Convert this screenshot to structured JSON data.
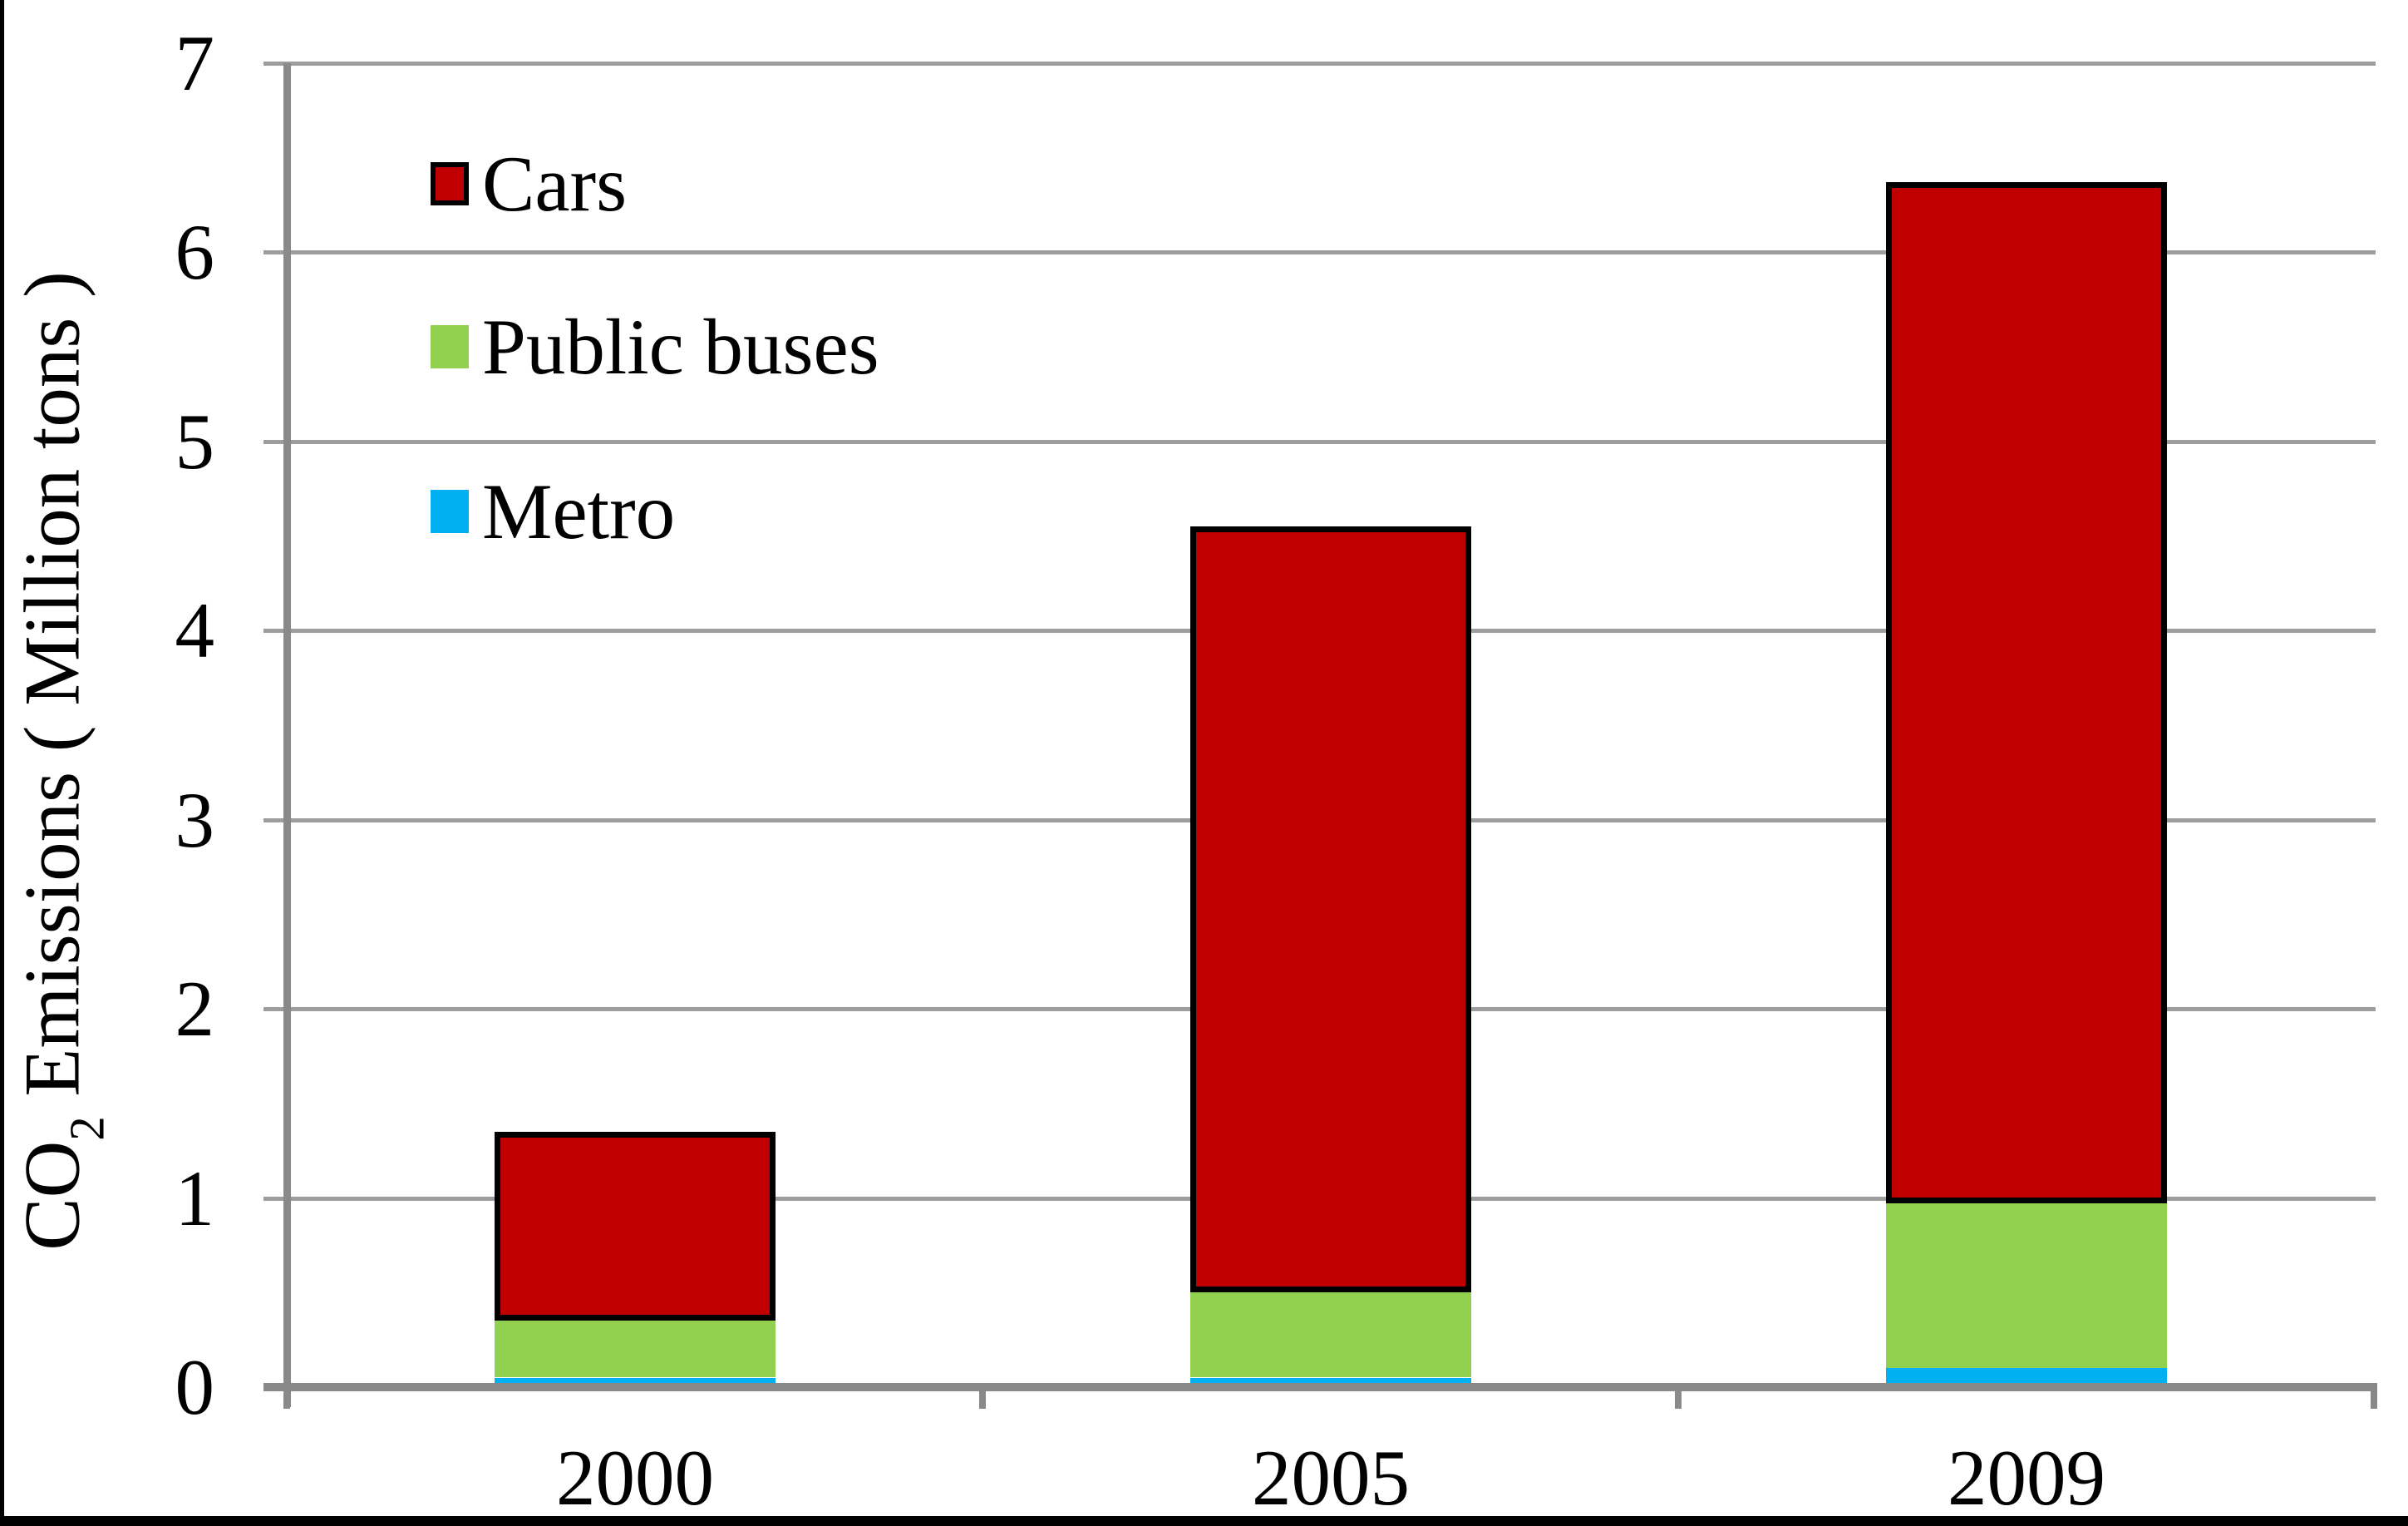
{
  "chart_data": {
    "type": "bar",
    "stacked": true,
    "title": "",
    "categories": [
      "2000",
      "2005",
      "2009"
    ],
    "series": [
      {
        "name": "Cars",
        "color": "#c00000",
        "border_color": "#000000",
        "values": [
          1.0,
          4.05,
          5.4
        ]
      },
      {
        "name": "Public buses",
        "color": "#92d050",
        "values": [
          0.3,
          0.45,
          0.87
        ]
      },
      {
        "name": "Metro",
        "color": "#00b0f0",
        "values": [
          0.05,
          0.05,
          0.1
        ]
      }
    ],
    "stack_order_bottom_to_top": [
      "Metro",
      "Public buses",
      "Cars"
    ],
    "stack_totals": [
      1.35,
      4.55,
      6.37
    ],
    "xlabel": "",
    "ylabel": "CO2 Emissions ( Million tons )",
    "ylim": [
      0,
      7
    ],
    "yticks": [
      0,
      1,
      2,
      3,
      4,
      5,
      6,
      7
    ],
    "grid": true,
    "legend_position": "inside-upper-left"
  },
  "y_axis": {
    "title_prefix": "CO",
    "title_sub": "2",
    "title_rest": " Emissions ( Million tons )"
  },
  "colors": {
    "cars": "#c00000",
    "public_buses": "#92d050",
    "metro": "#00b0f0",
    "gridline": "#9d9d9d",
    "axis": "#898989",
    "text": "#000000",
    "frame": "#000000",
    "background": "#ffffff"
  }
}
